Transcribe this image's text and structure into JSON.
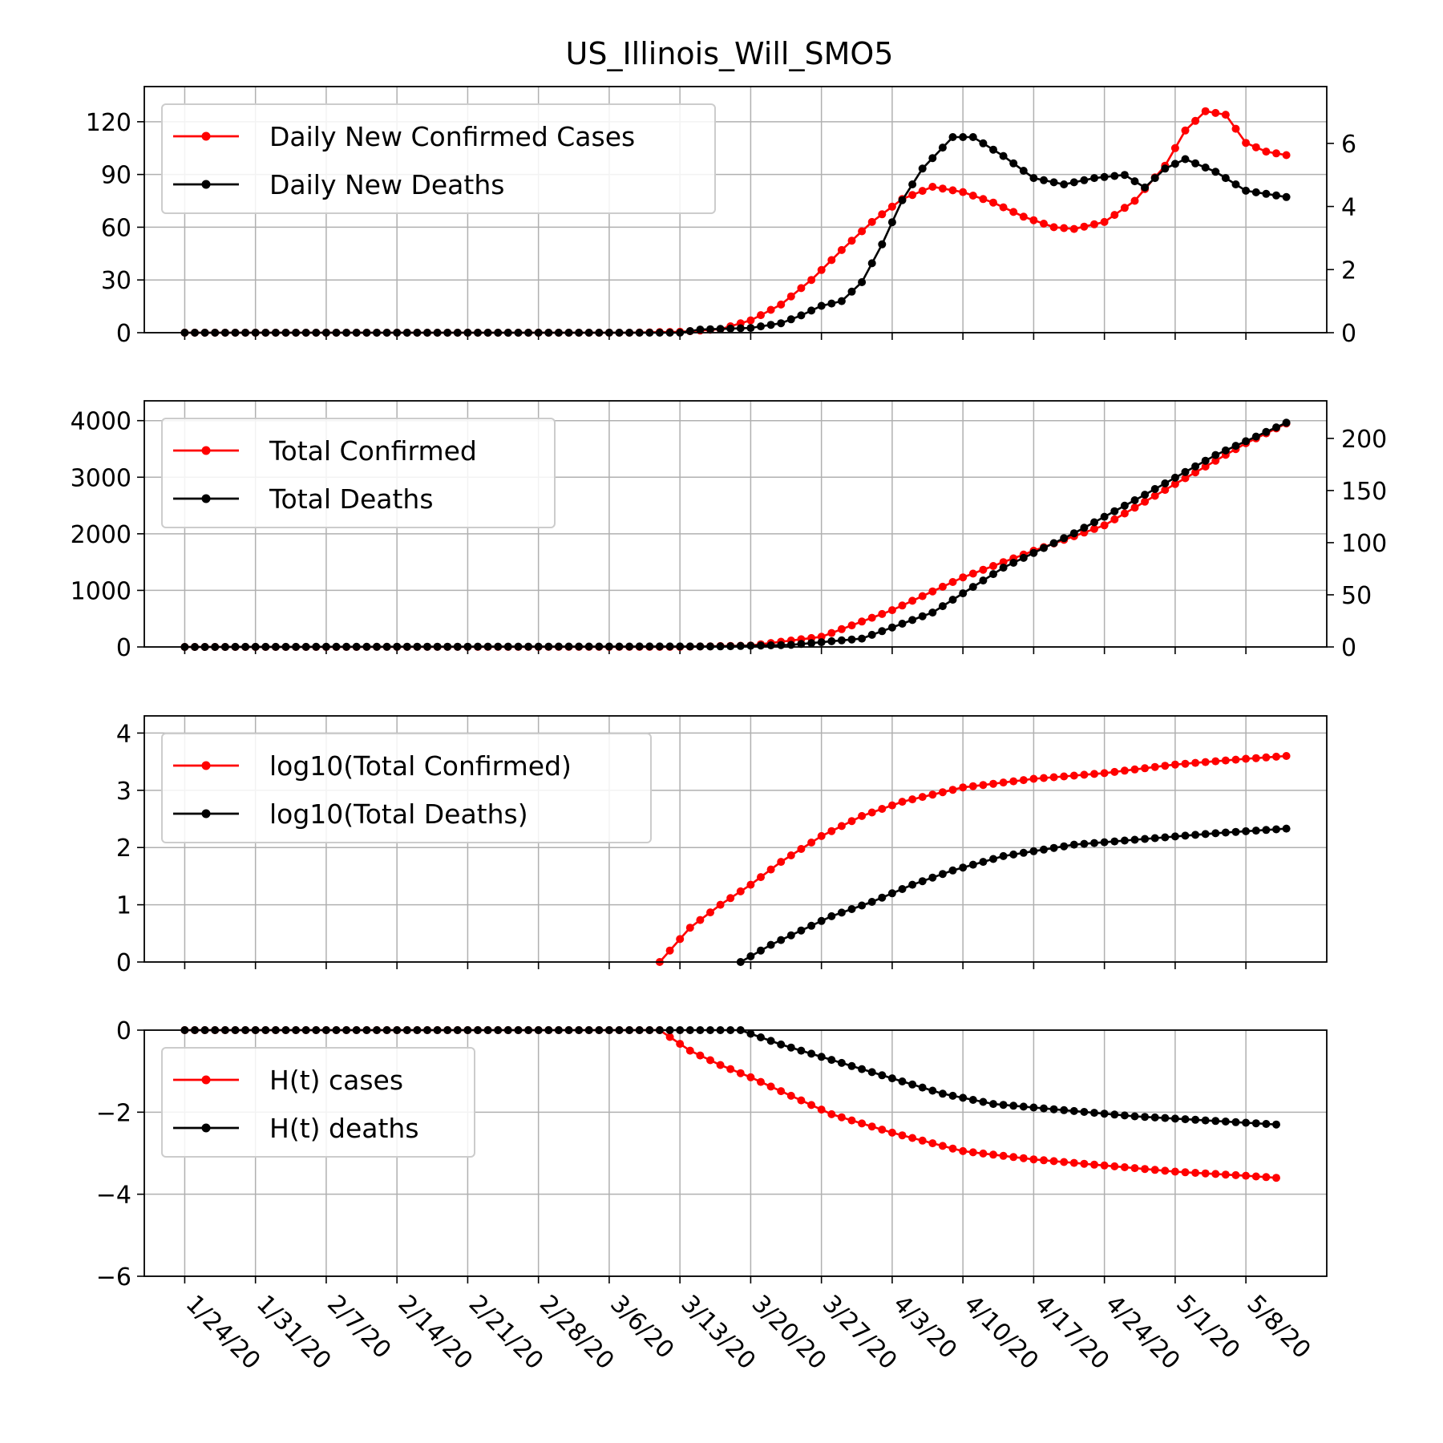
{
  "title": "US_Illinois_Will_SMO5",
  "colors": {
    "cases": "#ff0000",
    "deaths": "#000000",
    "grid": "#b0b0b0"
  },
  "chart_data": [
    {
      "type": "line",
      "panel": "daily",
      "x_start": "1/24/20",
      "x_end": "5/12/20",
      "xticks": [
        "1/24/20",
        "1/31/20",
        "2/7/20",
        "2/14/20",
        "2/21/20",
        "2/28/20",
        "3/6/20",
        "3/13/20",
        "3/20/20",
        "3/27/20",
        "4/3/20",
        "4/10/20",
        "4/17/20",
        "4/24/20",
        "5/1/20",
        "5/8/20"
      ],
      "ylim_left": [
        0,
        140
      ],
      "yticks_left": [
        0,
        30,
        60,
        90,
        120
      ],
      "ylim_right": [
        0,
        7.8
      ],
      "yticks_right": [
        0,
        2,
        4,
        6
      ],
      "legend_position": "top-left",
      "grid": true,
      "series": [
        {
          "name": "Daily New Confirmed Cases",
          "axis": "left",
          "points": [
            [
              "1/24/20",
              0
            ],
            [
              "3/8/20",
              0
            ],
            [
              "3/13/20",
              0.5
            ],
            [
              "3/17/20",
              2
            ],
            [
              "3/20/20",
              7
            ],
            [
              "3/23/20",
              16
            ],
            [
              "3/26/20",
              30
            ],
            [
              "3/29/20",
              47
            ],
            [
              "4/1/20",
              63
            ],
            [
              "4/4/20",
              76
            ],
            [
              "4/7/20",
              83
            ],
            [
              "4/10/20",
              80
            ],
            [
              "4/13/20",
              74
            ],
            [
              "4/16/20",
              66
            ],
            [
              "4/19/20",
              60
            ],
            [
              "4/21/20",
              59
            ],
            [
              "4/24/20",
              63
            ],
            [
              "4/27/20",
              75
            ],
            [
              "4/30/20",
              95
            ],
            [
              "5/2/20",
              115
            ],
            [
              "5/4/20",
              126
            ],
            [
              "5/6/20",
              124
            ],
            [
              "5/8/20",
              108
            ],
            [
              "5/10/20",
              103
            ],
            [
              "5/12/20",
              101
            ]
          ]
        },
        {
          "name": "Daily New Deaths",
          "axis": "right",
          "points": [
            [
              "1/24/20",
              0
            ],
            [
              "3/13/20",
              0
            ],
            [
              "3/15/20",
              0.1
            ],
            [
              "3/20/20",
              0.15
            ],
            [
              "3/23/20",
              0.3
            ],
            [
              "3/25/20",
              0.55
            ],
            [
              "3/27/20",
              0.85
            ],
            [
              "3/29/20",
              1
            ],
            [
              "3/31/20",
              1.6
            ],
            [
              "4/2/20",
              2.8
            ],
            [
              "4/4/20",
              4.2
            ],
            [
              "4/6/20",
              5.2
            ],
            [
              "4/9/20",
              6.2
            ],
            [
              "4/11/20",
              6.2
            ],
            [
              "4/14/20",
              5.6
            ],
            [
              "4/17/20",
              4.9
            ],
            [
              "4/20/20",
              4.7
            ],
            [
              "4/23/20",
              4.9
            ],
            [
              "4/26/20",
              5
            ],
            [
              "4/28/20",
              4.6
            ],
            [
              "4/30/20",
              5.2
            ],
            [
              "5/2/20",
              5.5
            ],
            [
              "5/5/20",
              5.1
            ],
            [
              "5/8/20",
              4.5
            ],
            [
              "5/12/20",
              4.3
            ]
          ]
        }
      ]
    },
    {
      "type": "line",
      "panel": "total",
      "ylim_left": [
        0,
        4350
      ],
      "yticks_left": [
        0,
        1000,
        2000,
        3000,
        4000
      ],
      "ylim_right": [
        0,
        236
      ],
      "yticks_right": [
        0,
        50,
        100,
        150,
        200
      ],
      "legend_position": "top-left",
      "grid": true,
      "series": [
        {
          "name": "Total Confirmed",
          "axis": "left",
          "points": [
            [
              "1/24/20",
              0
            ],
            [
              "3/13/20",
              2
            ],
            [
              "3/20/20",
              25
            ],
            [
              "3/27/20",
              180
            ],
            [
              "4/3/20",
              650
            ],
            [
              "4/10/20",
              1230
            ],
            [
              "4/17/20",
              1700
            ],
            [
              "4/24/20",
              2150
            ],
            [
              "5/1/20",
              2880
            ],
            [
              "5/8/20",
              3600
            ],
            [
              "5/12/20",
              3950
            ]
          ]
        },
        {
          "name": "Total Deaths",
          "axis": "right",
          "points": [
            [
              "1/24/20",
              0
            ],
            [
              "3/17/20",
              0.5
            ],
            [
              "3/24/20",
              2
            ],
            [
              "3/31/20",
              8
            ],
            [
              "4/7/20",
              33
            ],
            [
              "4/14/20",
              76
            ],
            [
              "4/21/20",
              109
            ],
            [
              "4/28/20",
              146
            ],
            [
              "5/5/20",
              184
            ],
            [
              "5/12/20",
              215
            ]
          ]
        }
      ]
    },
    {
      "type": "line",
      "panel": "log",
      "ylim_left": [
        0,
        4.3
      ],
      "yticks_left": [
        0,
        1,
        2,
        3,
        4
      ],
      "legend_position": "top-left",
      "grid": true,
      "series": [
        {
          "name": "log10(Total Confirmed)",
          "axis": "left",
          "points": [
            [
              "3/11/20",
              0
            ],
            [
              "3/14/20",
              0.6
            ],
            [
              "3/17/20",
              1
            ],
            [
              "3/20/20",
              1.35
            ],
            [
              "3/23/20",
              1.75
            ],
            [
              "3/27/20",
              2.2
            ],
            [
              "3/31/20",
              2.55
            ],
            [
              "4/4/20",
              2.8
            ],
            [
              "4/10/20",
              3.05
            ],
            [
              "4/17/20",
              3.2
            ],
            [
              "4/24/20",
              3.3
            ],
            [
              "5/1/20",
              3.45
            ],
            [
              "5/8/20",
              3.55
            ],
            [
              "5/12/20",
              3.6
            ]
          ]
        },
        {
          "name": "log10(Total Deaths)",
          "axis": "left",
          "points": [
            [
              "3/19/20",
              0
            ],
            [
              "3/22/20",
              0.3
            ],
            [
              "3/25/20",
              0.55
            ],
            [
              "3/28/20",
              0.8
            ],
            [
              "4/1/20",
              1.05
            ],
            [
              "4/5/20",
              1.35
            ],
            [
              "4/9/20",
              1.6
            ],
            [
              "4/14/20",
              1.85
            ],
            [
              "4/21/20",
              2.05
            ],
            [
              "4/28/20",
              2.15
            ],
            [
              "5/5/20",
              2.25
            ],
            [
              "5/12/20",
              2.33
            ]
          ]
        }
      ]
    },
    {
      "type": "line",
      "panel": "hazard",
      "ylim_left": [
        -6,
        0
      ],
      "yticks_left": [
        -6,
        -4,
        -2,
        0
      ],
      "legend_position": "top-left",
      "grid": true,
      "series": [
        {
          "name": "H(t) cases",
          "axis": "left",
          "points": [
            [
              "1/24/20",
              0
            ],
            [
              "3/11/20",
              0
            ],
            [
              "3/14/20",
              -0.5
            ],
            [
              "3/17/20",
              -0.85
            ],
            [
              "3/20/20",
              -1.15
            ],
            [
              "3/24/20",
              -1.6
            ],
            [
              "3/28/20",
              -2.05
            ],
            [
              "4/3/20",
              -2.5
            ],
            [
              "4/10/20",
              -2.95
            ],
            [
              "4/17/20",
              -3.15
            ],
            [
              "4/24/20",
              -3.3
            ],
            [
              "5/1/20",
              -3.45
            ],
            [
              "5/8/20",
              -3.55
            ],
            [
              "5/11/20",
              -3.6
            ]
          ]
        },
        {
          "name": "H(t) deaths",
          "axis": "left",
          "points": [
            [
              "1/24/20",
              0
            ],
            [
              "3/19/20",
              0
            ],
            [
              "3/23/20",
              -0.35
            ],
            [
              "3/27/20",
              -0.65
            ],
            [
              "3/31/20",
              -0.95
            ],
            [
              "4/4/20",
              -1.25
            ],
            [
              "4/8/20",
              -1.55
            ],
            [
              "4/13/20",
              -1.8
            ],
            [
              "4/20/20",
              -1.95
            ],
            [
              "4/27/20",
              -2.1
            ],
            [
              "5/4/20",
              -2.2
            ],
            [
              "5/11/20",
              -2.3
            ]
          ]
        }
      ]
    }
  ]
}
